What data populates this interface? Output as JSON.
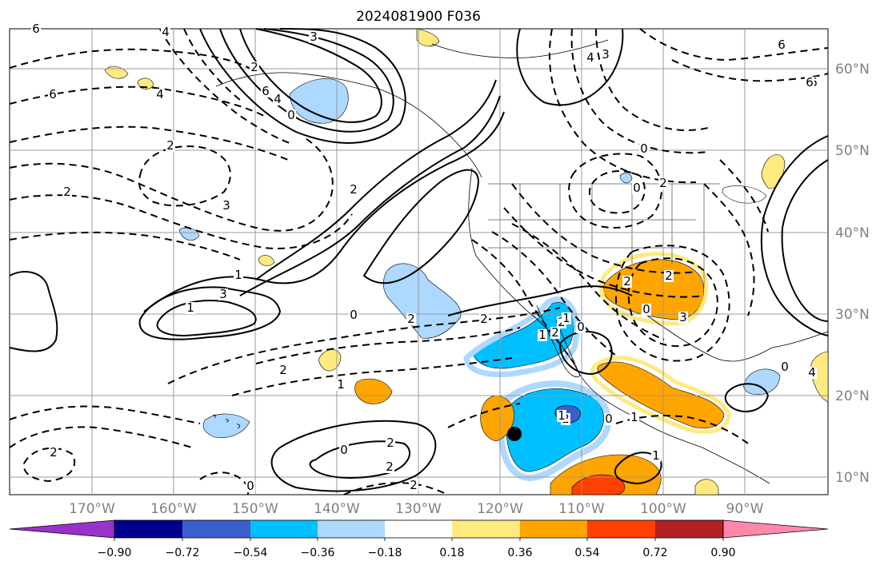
{
  "title": "2024081900 F036",
  "map": {
    "longitude_labels": [
      "170°W",
      "160°W",
      "150°W",
      "140°W",
      "130°W",
      "120°W",
      "110°W",
      "100°W",
      "90°W"
    ],
    "latitude_labels": [
      "60°N",
      "50°N",
      "40°N",
      "30°N",
      "20°N",
      "10°N"
    ],
    "gridlines": true,
    "colors": {
      "background": "#ffffff",
      "coastline": "#000000",
      "gridline": "#999999",
      "contour": "#000000",
      "tick_label": "#808080"
    }
  },
  "contour_labels": [
    "6",
    "4",
    "3",
    "6",
    "6",
    "4",
    "2",
    "3",
    "6",
    "4",
    "2",
    "3",
    "0",
    "6",
    "4",
    "2",
    "2",
    "1",
    "3",
    "1",
    "0",
    "2",
    "2",
    "2",
    "1",
    "0",
    "2",
    "2",
    "2",
    "1",
    "2",
    "2",
    "1",
    "0",
    "2",
    "1",
    "0",
    "1",
    "1",
    "2",
    "0",
    "2",
    "3",
    "0",
    "2",
    "0",
    "6",
    "4",
    "0",
    "2",
    "0"
  ],
  "colorbar": {
    "tick_labels": [
      "−0.90",
      "−0.72",
      "−0.54",
      "−0.36",
      "−0.18",
      "0.18",
      "0.36",
      "0.54",
      "0.72",
      "0.90"
    ],
    "segments": [
      "#9932cc",
      "#00008b",
      "#3a5fcd",
      "#00bfff",
      "#add8ff",
      "#ffffff",
      "#ffea80",
      "#ffa500",
      "#ff4000",
      "#b22222",
      "#ff88aa"
    ]
  }
}
